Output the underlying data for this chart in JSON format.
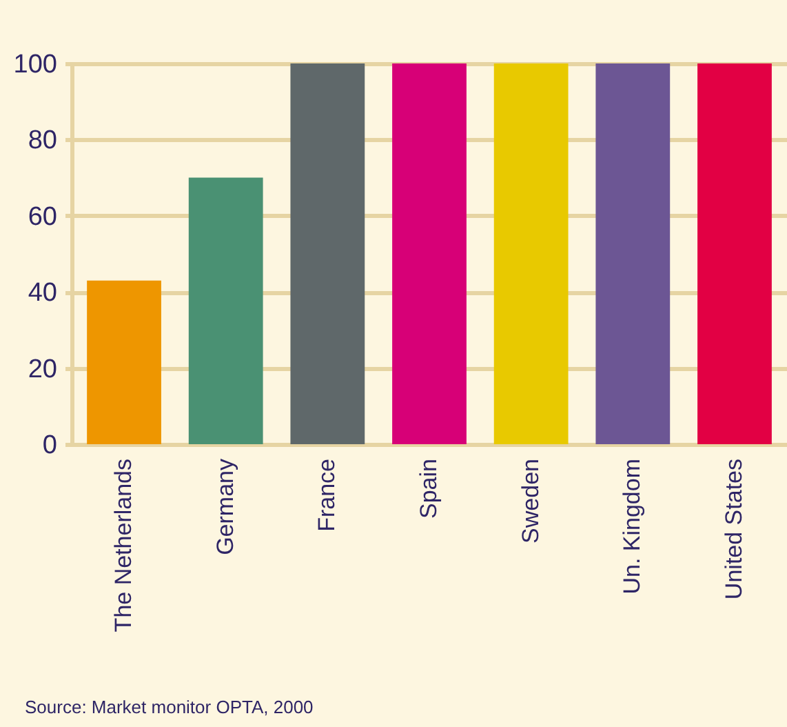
{
  "chart_data": {
    "type": "bar",
    "categories": [
      "The Netherlands",
      "Germany",
      "France",
      "Spain",
      "Sweden",
      "Un. Kingdom",
      "United States"
    ],
    "values": [
      43,
      70,
      100,
      100,
      100,
      100,
      100
    ],
    "colors": [
      "#ee9600",
      "#4a9173",
      "#5f686a",
      "#d70077",
      "#e8c900",
      "#6c5694",
      "#e20044"
    ],
    "ylim": [
      0,
      100
    ],
    "yticks": [
      0,
      20,
      40,
      60,
      80,
      100
    ],
    "grid": "y",
    "annotations": [
      "Source: Market monitor OPTA, 2000"
    ]
  }
}
